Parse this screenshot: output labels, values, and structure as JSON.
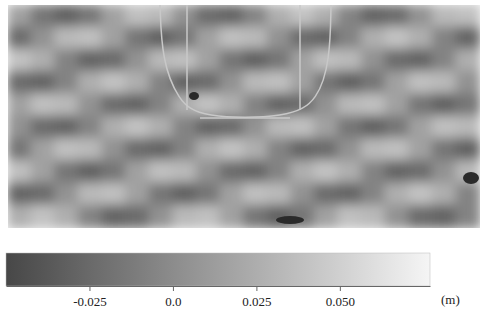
{
  "chart_data": {
    "type": "heatmap",
    "tick_labels": false,
    "cells": [
      [
        0.016,
        -0.016,
        -0.03,
        -0.016,
        0.016,
        0.038,
        0.033,
        0.005,
        -0.023,
        -0.028,
        -0.006,
        0.026,
        0.04,
        0.026,
        -0.006,
        -0.028,
        -0.023,
        0.005,
        0.033,
        0.038
      ],
      [
        -0.023,
        0.005,
        0.033,
        0.038,
        0.016,
        -0.016,
        -0.03,
        -0.016,
        0.016,
        0.038,
        0.033,
        0.005,
        -0.023,
        -0.028,
        -0.006,
        0.026,
        0.04,
        0.026,
        -0.006,
        -0.028
      ],
      [
        0.04,
        0.026,
        -0.006,
        -0.028,
        -0.023,
        0.005,
        0.033,
        0.038,
        0.016,
        -0.016,
        -0.03,
        -0.016,
        0.016,
        0.038,
        0.033,
        0.005,
        -0.023,
        -0.028,
        -0.006,
        0.026
      ],
      [
        -0.023,
        -0.028,
        -0.006,
        0.026,
        0.04,
        0.026,
        -0.006,
        -0.028,
        -0.023,
        0.005,
        0.033,
        0.038,
        0.016,
        -0.016,
        -0.03,
        -0.016,
        0.016,
        0.038,
        0.033,
        0.005
      ],
      [
        0.016,
        0.038,
        0.033,
        0.005,
        -0.023,
        -0.028,
        -0.006,
        0.026,
        0.04,
        0.026,
        -0.006,
        -0.028,
        -0.023,
        0.005,
        0.033,
        0.038,
        0.016,
        -0.016,
        -0.03,
        -0.016
      ],
      [
        0.005,
        -0.023,
        -0.028,
        -0.006,
        0.026,
        0.04,
        0.026,
        -0.006,
        -0.028,
        -0.023,
        0.005,
        0.033,
        0.038,
        0.016,
        -0.016,
        -0.03,
        -0.016,
        0.016,
        0.038,
        0.033
      ],
      [
        -0.016,
        0.016,
        0.038,
        0.033,
        0.005,
        -0.023,
        -0.028,
        -0.006,
        0.026,
        0.04,
        0.026,
        -0.006,
        -0.028,
        -0.023,
        0.005,
        0.033,
        0.038,
        0.016,
        -0.016,
        -0.03
      ],
      [
        0.038,
        0.016,
        -0.016,
        -0.03,
        -0.016,
        0.016,
        0.038,
        0.033,
        0.005,
        -0.023,
        -0.028,
        -0.006,
        0.026,
        0.04,
        0.026,
        -0.006,
        -0.028,
        -0.023,
        0.005,
        0.033
      ],
      [
        -0.028,
        -0.023,
        0.005,
        0.033,
        0.038,
        0.016,
        -0.016,
        -0.03,
        -0.016,
        0.016,
        0.038,
        0.033,
        0.005,
        -0.023,
        -0.028,
        -0.006,
        0.026,
        0.04,
        0.026,
        -0.006
      ],
      [
        0.026,
        0.04,
        0.026,
        -0.006,
        -0.028,
        -0.023,
        0.005,
        0.033,
        0.038,
        0.016,
        -0.016,
        -0.03,
        -0.016,
        0.016,
        0.038,
        0.033,
        0.005,
        -0.023,
        -0.028,
        -0.006
      ]
    ],
    "colorbar": {
      "range": [
        -0.05,
        0.077
      ],
      "ticks": [
        -0.025,
        {
          "value": 0,
          "label": "0.0"
        },
        0.025,
        {
          "value": 0.05,
          "label": "0.050"
        }
      ],
      "label": "(m)"
    }
  }
}
